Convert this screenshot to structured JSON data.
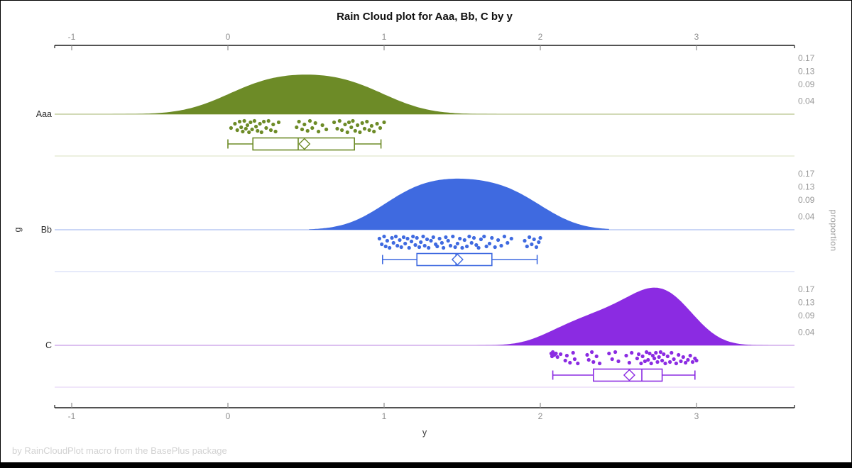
{
  "title": "Rain Cloud plot for Aaa, Bb, C by y",
  "footer": "by RainCloudPlot macro from the BasePlus package",
  "chart_data": {
    "type": "raincloud",
    "title": "Rain Cloud plot for Aaa, Bb, C by y",
    "x_axis": {
      "label": "y",
      "tick_labels": [
        "-1",
        "0",
        "1",
        "2",
        "3"
      ],
      "tick_values": [
        -1,
        0,
        1,
        2,
        3
      ],
      "range": [
        -1.11,
        3.63
      ],
      "position": "top and bottom"
    },
    "left_axis": {
      "label": "g",
      "categories": [
        "Aaa",
        "Bb",
        "C"
      ]
    },
    "right_axis": {
      "label": "proportion",
      "tick_values": [
        0.17,
        0.13,
        0.09,
        0.04
      ],
      "repeated_per_group": true
    },
    "grid": false,
    "legend": "none",
    "groups": [
      {
        "name": "Aaa",
        "color": "#6d8b27",
        "baseline_color": "#b6c48c",
        "separator_color": "#e0e6cd",
        "cloud": {
          "range": [
            -0.8,
            1.72
          ],
          "peak_proportion": 0.12,
          "components": [
            {
              "mu": 0.08,
              "sd": 0.24,
              "w": 1
            },
            {
              "mu": 0.22,
              "sd": 0.24,
              "w": 1
            },
            {
              "mu": 0.36,
              "sd": 0.24,
              "w": 1
            },
            {
              "mu": 0.5,
              "sd": 0.24,
              "w": 1
            },
            {
              "mu": 0.64,
              "sd": 0.24,
              "w": 1
            },
            {
              "mu": 0.78,
              "sd": 0.24,
              "w": 1
            },
            {
              "mu": 0.92,
              "sd": 0.24,
              "w": 1
            }
          ]
        },
        "box": {
          "whisker_low": 0.0,
          "q1": 0.16,
          "median": 0.45,
          "q3": 0.81,
          "whisker_high": 0.98,
          "mean": 0.49
        },
        "points": [
          [
            0.02,
            2
          ],
          [
            0.045,
            -4
          ],
          [
            0.06,
            5
          ],
          [
            0.075,
            -7
          ],
          [
            0.085,
            1
          ],
          [
            0.095,
            7
          ],
          [
            0.105,
            -8
          ],
          [
            0.115,
            3
          ],
          [
            0.125,
            -2
          ],
          [
            0.135,
            8
          ],
          [
            0.145,
            -6
          ],
          [
            0.155,
            4
          ],
          [
            0.17,
            -8
          ],
          [
            0.18,
            0
          ],
          [
            0.19,
            6
          ],
          [
            0.205,
            -4
          ],
          [
            0.215,
            8
          ],
          [
            0.23,
            -7
          ],
          [
            0.245,
            2
          ],
          [
            0.26,
            -8
          ],
          [
            0.275,
            5
          ],
          [
            0.29,
            -3
          ],
          [
            0.305,
            7
          ],
          [
            0.325,
            -6
          ],
          [
            0.44,
            1
          ],
          [
            0.455,
            -7
          ],
          [
            0.475,
            4
          ],
          [
            0.49,
            -3
          ],
          [
            0.51,
            6
          ],
          [
            0.525,
            -8
          ],
          [
            0.54,
            2
          ],
          [
            0.56,
            -5
          ],
          [
            0.58,
            7
          ],
          [
            0.605,
            -2
          ],
          [
            0.63,
            4
          ],
          [
            0.68,
            -6
          ],
          [
            0.7,
            3
          ],
          [
            0.715,
            -8
          ],
          [
            0.73,
            5
          ],
          [
            0.75,
            -3
          ],
          [
            0.765,
            8
          ],
          [
            0.775,
            -6
          ],
          [
            0.79,
            1
          ],
          [
            0.8,
            -8
          ],
          [
            0.815,
            6
          ],
          [
            0.83,
            -2
          ],
          [
            0.845,
            8
          ],
          [
            0.86,
            -5
          ],
          [
            0.875,
            3
          ],
          [
            0.89,
            -7
          ],
          [
            0.905,
            5
          ],
          [
            0.92,
            -1
          ],
          [
            0.935,
            7
          ],
          [
            0.955,
            -4
          ],
          [
            0.975,
            2
          ],
          [
            1.0,
            -6
          ]
        ]
      },
      {
        "name": "Bb",
        "color": "#3f6ae0",
        "baseline_color": "#aabdf0",
        "separator_color": "#d6def7",
        "cloud": {
          "range": [
            0.52,
            2.44
          ],
          "peak_proportion": 0.155,
          "components": [
            {
              "mu": 1.05,
              "sd": 0.205,
              "w": 0.9
            },
            {
              "mu": 1.18,
              "sd": 0.205,
              "w": 1.0
            },
            {
              "mu": 1.31,
              "sd": 0.205,
              "w": 1.08
            },
            {
              "mu": 1.44,
              "sd": 0.205,
              "w": 1.1
            },
            {
              "mu": 1.57,
              "sd": 0.205,
              "w": 1.05
            },
            {
              "mu": 1.7,
              "sd": 0.205,
              "w": 1.0
            },
            {
              "mu": 1.83,
              "sd": 0.205,
              "w": 0.95
            },
            {
              "mu": 1.95,
              "sd": 0.205,
              "w": 0.82
            }
          ]
        },
        "box": {
          "whisker_low": 0.99,
          "q1": 1.21,
          "median": 1.46,
          "q3": 1.69,
          "whisker_high": 1.98,
          "mean": 1.47
        },
        "points": [
          [
            0.97,
            -5
          ],
          [
            0.985,
            3
          ],
          [
            1.0,
            -8
          ],
          [
            1.01,
            6
          ],
          [
            1.02,
            -2
          ],
          [
            1.035,
            8
          ],
          [
            1.05,
            -6
          ],
          [
            1.06,
            1
          ],
          [
            1.075,
            -8
          ],
          [
            1.085,
            5
          ],
          [
            1.1,
            -3
          ],
          [
            1.11,
            7
          ],
          [
            1.125,
            -7
          ],
          [
            1.135,
            2
          ],
          [
            1.15,
            -5
          ],
          [
            1.16,
            8
          ],
          [
            1.175,
            -1
          ],
          [
            1.185,
            -8
          ],
          [
            1.2,
            4
          ],
          [
            1.21,
            -6
          ],
          [
            1.225,
            7
          ],
          [
            1.235,
            0
          ],
          [
            1.25,
            -8
          ],
          [
            1.26,
            5
          ],
          [
            1.275,
            -4
          ],
          [
            1.285,
            8
          ],
          [
            1.3,
            -2
          ],
          [
            1.315,
            -7
          ],
          [
            1.33,
            3
          ],
          [
            1.34,
            6
          ],
          [
            1.355,
            -5
          ],
          [
            1.37,
            1
          ],
          [
            1.38,
            8
          ],
          [
            1.395,
            -7
          ],
          [
            1.41,
            -2
          ],
          [
            1.425,
            5
          ],
          [
            1.44,
            -8
          ],
          [
            1.455,
            7
          ],
          [
            1.47,
            2
          ],
          [
            1.485,
            -5
          ],
          [
            1.5,
            8
          ],
          [
            1.515,
            -3
          ],
          [
            1.53,
            6
          ],
          [
            1.545,
            -8
          ],
          [
            1.56,
            1
          ],
          [
            1.575,
            -6
          ],
          [
            1.59,
            4
          ],
          [
            1.605,
            8
          ],
          [
            1.62,
            -4
          ],
          [
            1.64,
            -8
          ],
          [
            1.655,
            6
          ],
          [
            1.675,
            2
          ],
          [
            1.69,
            -6
          ],
          [
            1.71,
            7
          ],
          [
            1.73,
            -3
          ],
          [
            1.75,
            5
          ],
          [
            1.77,
            -8
          ],
          [
            1.79,
            1
          ],
          [
            1.815,
            -5
          ],
          [
            1.9,
            -2
          ],
          [
            1.915,
            6
          ],
          [
            1.93,
            -7
          ],
          [
            1.945,
            3
          ],
          [
            1.96,
            -4
          ],
          [
            1.975,
            7
          ],
          [
            1.99,
            0
          ],
          [
            2.0,
            -6
          ]
        ]
      },
      {
        "name": "C",
        "color": "#8b2be2",
        "baseline_color": "#c79ae8",
        "separator_color": "#e8d6f7",
        "cloud": {
          "range": [
            1.55,
            3.46
          ],
          "peak_proportion": 0.175,
          "components": [
            {
              "mu": 2.12,
              "sd": 0.155,
              "w": 0.6
            },
            {
              "mu": 2.3,
              "sd": 0.155,
              "w": 0.78
            },
            {
              "mu": 2.45,
              "sd": 0.155,
              "w": 0.88
            },
            {
              "mu": 2.6,
              "sd": 0.155,
              "w": 1.05
            },
            {
              "mu": 2.72,
              "sd": 0.155,
              "w": 1.28
            },
            {
              "mu": 2.83,
              "sd": 0.155,
              "w": 1.18
            },
            {
              "mu": 2.93,
              "sd": 0.155,
              "w": 0.8
            }
          ]
        },
        "box": {
          "whisker_low": 2.08,
          "q1": 2.34,
          "median": 2.65,
          "q3": 2.78,
          "whisker_high": 2.99,
          "mean": 2.57
        },
        "points": [
          [
            2.07,
            -6
          ],
          [
            2.075,
            -2
          ],
          [
            2.08,
            -8
          ],
          [
            2.09,
            -4
          ],
          [
            2.1,
            -6
          ],
          [
            2.11,
            -1
          ],
          [
            2.13,
            -5
          ],
          [
            2.16,
            4
          ],
          [
            2.17,
            -3
          ],
          [
            2.19,
            7
          ],
          [
            2.21,
            -7
          ],
          [
            2.22,
            2
          ],
          [
            2.24,
            8
          ],
          [
            2.3,
            -4
          ],
          [
            2.31,
            3
          ],
          [
            2.33,
            -8
          ],
          [
            2.34,
            6
          ],
          [
            2.36,
            -2
          ],
          [
            2.38,
            8
          ],
          [
            2.44,
            -6
          ],
          [
            2.46,
            2
          ],
          [
            2.48,
            -8
          ],
          [
            2.5,
            5
          ],
          [
            2.55,
            -3
          ],
          [
            2.57,
            7
          ],
          [
            2.585,
            -7
          ],
          [
            2.62,
            1
          ],
          [
            2.63,
            -5
          ],
          [
            2.645,
            8
          ],
          [
            2.655,
            -2
          ],
          [
            2.67,
            5
          ],
          [
            2.68,
            -8
          ],
          [
            2.69,
            3
          ],
          [
            2.7,
            -6
          ],
          [
            2.71,
            8
          ],
          [
            2.72,
            -3
          ],
          [
            2.73,
            1
          ],
          [
            2.74,
            -7
          ],
          [
            2.75,
            6
          ],
          [
            2.76,
            -1
          ],
          [
            2.77,
            -8
          ],
          [
            2.78,
            4
          ],
          [
            2.79,
            -5
          ],
          [
            2.8,
            8
          ],
          [
            2.815,
            -2
          ],
          [
            2.83,
            6
          ],
          [
            2.84,
            -7
          ],
          [
            2.855,
            2
          ],
          [
            2.87,
            8
          ],
          [
            2.885,
            -4
          ],
          [
            2.9,
            5
          ],
          [
            2.915,
            -1
          ],
          [
            2.93,
            7
          ],
          [
            2.945,
            3
          ],
          [
            2.96,
            -3
          ],
          [
            2.975,
            6
          ],
          [
            2.99,
            1
          ],
          [
            3.0,
            4
          ]
        ]
      }
    ]
  }
}
